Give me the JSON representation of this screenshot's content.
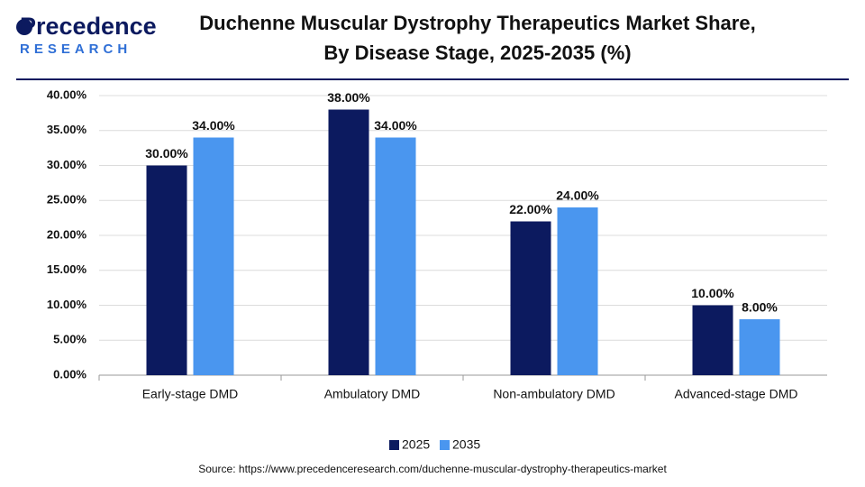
{
  "logo": {
    "name": "Precedence",
    "tagline": "RESEARCH"
  },
  "chart_data": {
    "type": "bar",
    "title": [
      "Duchenne Muscular Dystrophy Therapeutics Market Share,",
      "By Disease Stage, 2025-2035 (%)"
    ],
    "categories": [
      "Early-stage DMD",
      "Ambulatory DMD",
      "Non-ambulatory DMD",
      "Advanced-stage DMD"
    ],
    "series": [
      {
        "name": "2025",
        "color": "#0c1a5f",
        "values": [
          30,
          38,
          22,
          10
        ],
        "value_labels": [
          "30.00%",
          "38.00%",
          "22.00%",
          "10.00%"
        ]
      },
      {
        "name": "2035",
        "color": "#4a96ef",
        "values": [
          34,
          34,
          24,
          8
        ],
        "value_labels": [
          "34.00%",
          "34.00%",
          "24.00%",
          "8.00%"
        ]
      }
    ],
    "ylim": [
      0,
      40
    ],
    "yticks": [
      {
        "value": 0,
        "label": "0.00%"
      },
      {
        "value": 5,
        "label": "5.00%"
      },
      {
        "value": 10,
        "label": "10.00%"
      },
      {
        "value": 15,
        "label": "15.00%"
      },
      {
        "value": 20,
        "label": "20.00%"
      },
      {
        "value": 25,
        "label": "25.00%"
      },
      {
        "value": 30,
        "label": "30.00%"
      },
      {
        "value": 35,
        "label": "35.00%"
      },
      {
        "value": 40,
        "label": "40.00%"
      }
    ],
    "grid": true,
    "legend": "bottom",
    "source": "Source: https://www.precedenceresearch.com/duchenne-muscular-dystrophy-therapeutics-market"
  }
}
